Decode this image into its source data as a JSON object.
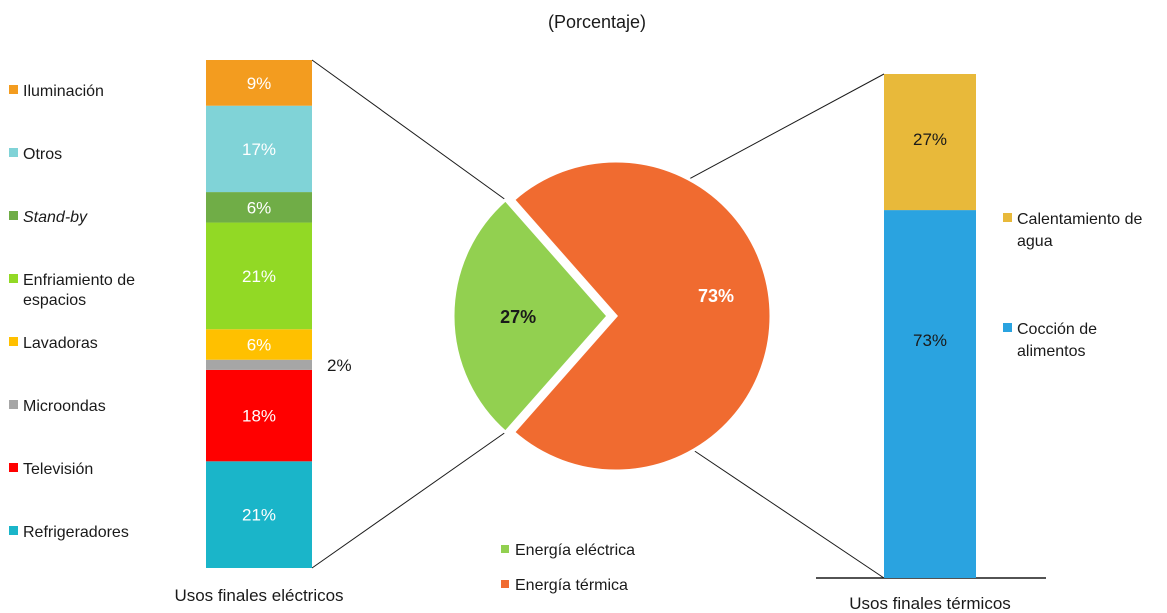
{
  "chart_data": {
    "type": "bar-of-pie",
    "subtitle": "(Porcentaje)",
    "pie": {
      "slices": [
        {
          "name": "Energía eléctrica",
          "value": 27,
          "label": "27%",
          "color": "#92d050"
        },
        {
          "name": "Energía térmica",
          "value": 73,
          "label": "73%",
          "color": "#f06b30"
        }
      ],
      "legend": [
        "Energía eléctrica",
        "Energía térmica"
      ],
      "legend_position": "bottom"
    },
    "electric_bar": {
      "title": "Usos finales eléctricos",
      "legend_position": "left",
      "stack_order": "bottom-to-top",
      "segments": [
        {
          "name": "Refrigeradores",
          "value": 21,
          "label": "21%",
          "color": "#1ab5c9",
          "italic": false
        },
        {
          "name": "Televisión",
          "value": 18,
          "label": "18%",
          "color": "#ff0000",
          "italic": false
        },
        {
          "name": "Microondas",
          "value": 2,
          "label": "2%",
          "color": "#a6a6a6",
          "italic": false
        },
        {
          "name": "Lavadoras",
          "value": 6,
          "label": "6%",
          "color": "#ffc000",
          "italic": false
        },
        {
          "name": "Enfriamiento de espacios",
          "value": 21,
          "label": "21%",
          "color": "#92d925",
          "italic": false
        },
        {
          "name": "Stand-by",
          "value": 6,
          "label": "6%",
          "color": "#70ad47",
          "italic": true
        },
        {
          "name": "Otros",
          "value": 17,
          "label": "17%",
          "color": "#80d3d7",
          "italic": false
        },
        {
          "name": "Iluminación",
          "value": 9,
          "label": "9%",
          "color": "#f39c1f",
          "italic": false
        }
      ]
    },
    "thermal_bar": {
      "title": "Usos finales térmicos",
      "legend_position": "right",
      "stack_order": "bottom-to-top",
      "segments": [
        {
          "name": "Cocción de alimentos",
          "value": 73,
          "label": "73%",
          "color": "#2aa3e0"
        },
        {
          "name": "Calentamiento de agua",
          "value": 27,
          "label": "27%",
          "color": "#e8b93a"
        }
      ]
    }
  }
}
